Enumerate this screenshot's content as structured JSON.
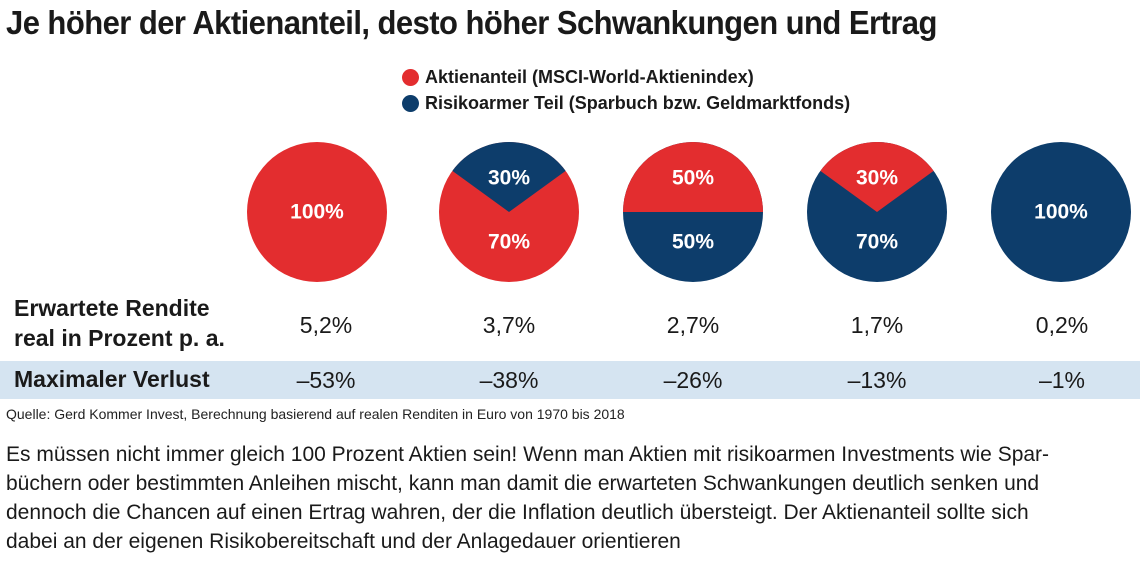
{
  "title": "Je höher der Aktienanteil, desto höher Schwankungen und Ertrag",
  "legend": [
    {
      "label": "Aktienanteil (MSCI-World-Aktienindex)",
      "color": "#e32d2f"
    },
    {
      "label": "Risikoarmer Teil (Sparbuch bzw. Geldmarktfonds)",
      "color": "#0d3d6b"
    }
  ],
  "chart_data": {
    "type": "pie",
    "title": "Je höher der Aktienanteil, desto höher Schwankungen und Ertrag",
    "series_names": [
      "Aktienanteil (MSCI-World-Aktienindex)",
      "Risikoarmer Teil (Sparbuch bzw. Geldmarktfonds)"
    ],
    "colors": [
      "#e32d2f",
      "#0d3d6b"
    ],
    "pies": [
      {
        "aktien": 100,
        "risikoarm": 0,
        "aktien_label": "100%",
        "risikoarm_label": ""
      },
      {
        "aktien": 70,
        "risikoarm": 30,
        "aktien_label": "70%",
        "risikoarm_label": "30%"
      },
      {
        "aktien": 50,
        "risikoarm": 50,
        "aktien_label": "50%",
        "risikoarm_label": "50%"
      },
      {
        "aktien": 30,
        "risikoarm": 70,
        "aktien_label": "30%",
        "risikoarm_label": "70%"
      },
      {
        "aktien": 0,
        "risikoarm": 100,
        "aktien_label": "",
        "risikoarm_label": "100%"
      }
    ]
  },
  "rows": {
    "rendite": {
      "label_line1": "Erwartete Rendite",
      "label_line2": "real in Prozent p. a.",
      "values": [
        "5,2%",
        "3,7%",
        "2,7%",
        "1,7%",
        "0,2%"
      ]
    },
    "verlust": {
      "label": "Maximaler Verlust",
      "values": [
        "–53%",
        "–38%",
        "–26%",
        "–13%",
        "–1%"
      ]
    }
  },
  "source": "Quelle: Gerd Kommer Invest, Berechnung basierend auf realen Renditen in Euro von 1970 bis 2018",
  "body_lines": [
    "Es müssen nicht immer gleich 100 Prozent Aktien sein! Wenn man Aktien mit risikoarmen Investments wie Spar-",
    "büchern oder bestimmten Anleihen mischt, kann man damit die erwarteten Schwankungen deutlich senken und",
    "dennoch die Chancen auf einen Ertrag wahren, der die Inflation deutlich übersteigt. Der Aktienanteil sollte sich",
    "dabei an der eigenen Risikobereitschaft und der Anlagedauer orientieren"
  ]
}
